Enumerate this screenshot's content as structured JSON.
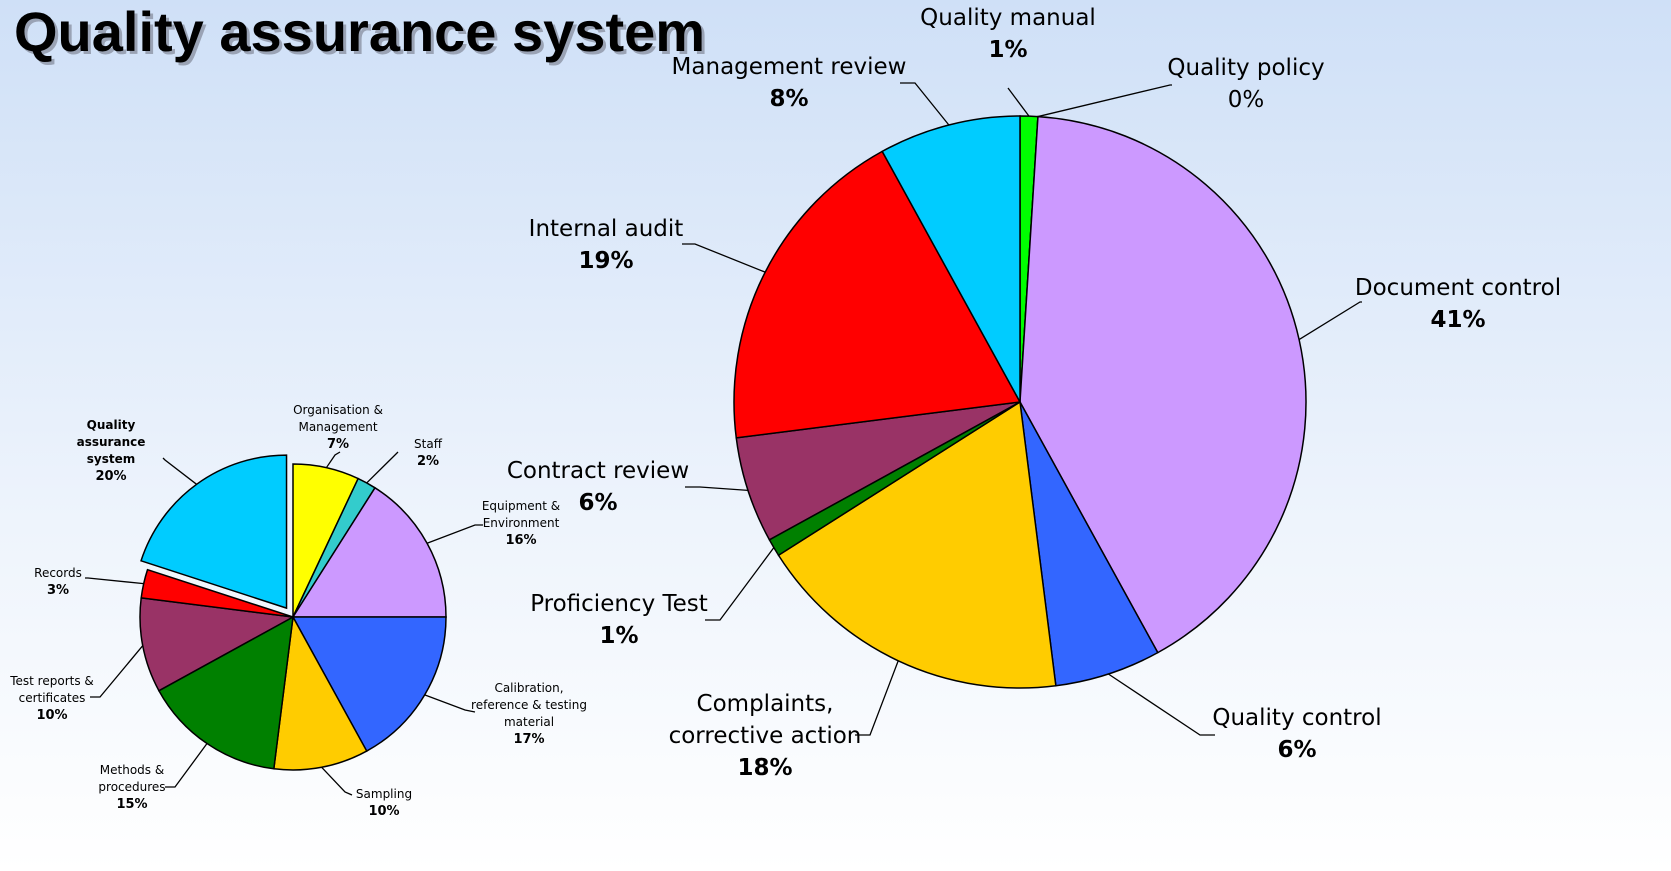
{
  "title": "Quality assurance system",
  "chart_data": [
    {
      "type": "pie",
      "categories": [
        "Organisation & Management",
        "Staff",
        "Equipment & Environment",
        "Calibration, reference & testing material",
        "Sampling",
        "Methods & procedures",
        "Test reports & certificates",
        "Records",
        "Quality assurance system"
      ],
      "values": [
        7,
        2,
        16,
        17,
        10,
        15,
        10,
        3,
        20
      ],
      "value_labels": [
        "7%",
        "2%",
        "16%",
        "17%",
        "10%",
        "15%",
        "10%",
        "3%",
        "20%"
      ],
      "colors": [
        "#ffff00",
        "#33cccc",
        "#cc99ff",
        "#3366ff",
        "#ffcc00",
        "#008000",
        "#993366",
        "#ff0000",
        "#00ccff"
      ]
    },
    {
      "type": "pie",
      "categories": [
        "Quality manual",
        "Quality policy",
        "Document control",
        "Quality control",
        "Complaints, corrective action",
        "Proficiency Test",
        "Contract review",
        "Internal audit",
        "Management review"
      ],
      "values": [
        1,
        0,
        41,
        6,
        18,
        1,
        6,
        19,
        8
      ],
      "value_labels": [
        "1%",
        "0%",
        "41%",
        "6%",
        "18%",
        "1%",
        "6%",
        "19%",
        "8%"
      ],
      "colors": [
        "#00ff00",
        "#33cccc",
        "#cc99ff",
        "#3366ff",
        "#ffcc00",
        "#008000",
        "#993366",
        "#ff0000",
        "#00ccff"
      ]
    }
  ]
}
